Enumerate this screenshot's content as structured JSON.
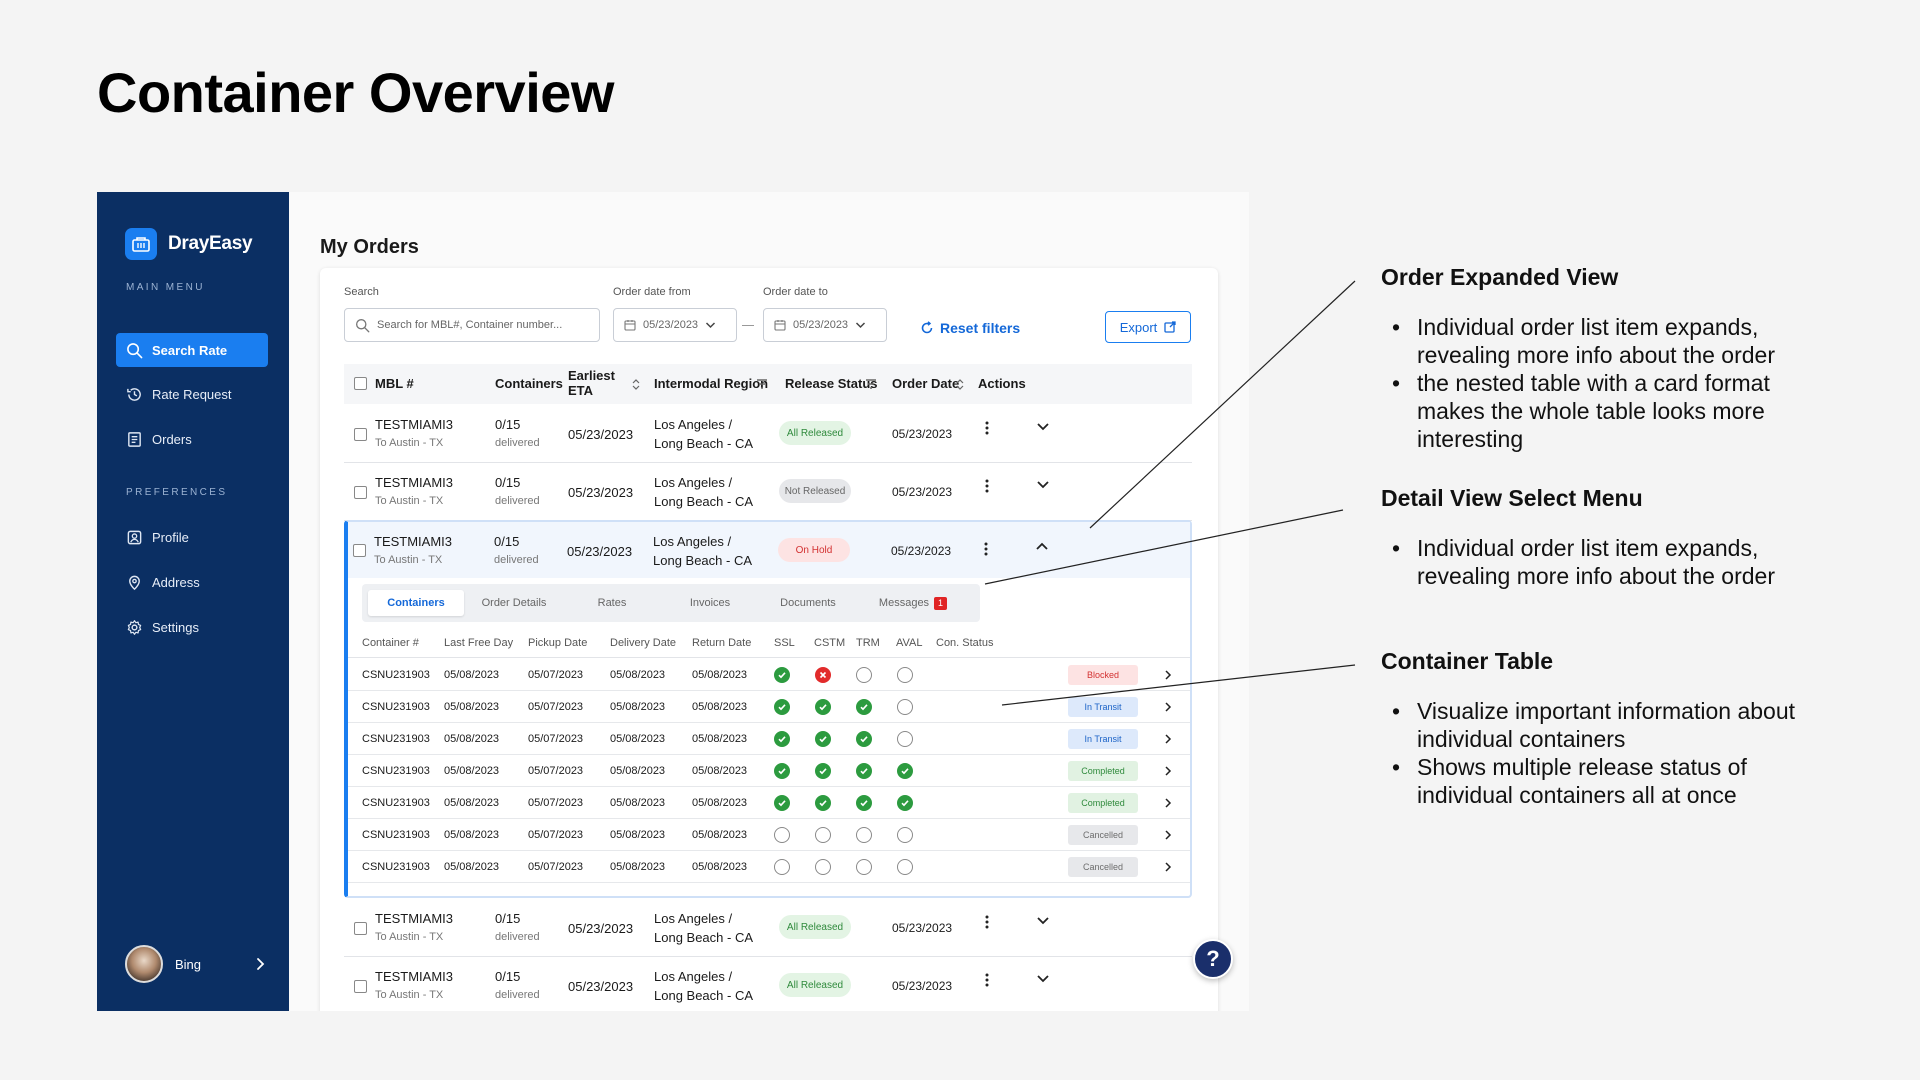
{
  "slide": {
    "title": "Container Overview"
  },
  "sidebar": {
    "brand": "DrayEasy",
    "main_menu_label": "MAIN MENU",
    "preferences_label": "PREFERENCES",
    "items": [
      {
        "label": "Search Rate",
        "icon": "search-icon",
        "active": true
      },
      {
        "label": "Rate Request",
        "icon": "history-icon",
        "active": false
      },
      {
        "label": "Orders",
        "icon": "list-icon",
        "active": false
      },
      {
        "label": "Profile",
        "icon": "profile-icon",
        "active": false
      },
      {
        "label": "Address",
        "icon": "location-icon",
        "active": false
      },
      {
        "label": "Settings",
        "icon": "gear-icon",
        "active": false
      }
    ],
    "user": {
      "name": "Bing"
    }
  },
  "main": {
    "title": "My Orders",
    "filters": {
      "search_label": "Search",
      "search_placeholder": "Search for MBL#, Container number...",
      "date_from_label": "Order date from",
      "date_from_value": "05/23/2023",
      "date_to_label": "Order date to",
      "date_to_value": "05/23/2023",
      "reset_label": "Reset filters",
      "export_label": "Export"
    },
    "columns": [
      "MBL #",
      "Containers",
      "Earliest ETA",
      "Intermodal Region",
      "Release Status",
      "Order Date",
      "Actions"
    ],
    "orders": [
      {
        "mbl": "TESTMIAMI3",
        "dest": "To Austin - TX",
        "containers": "0/15",
        "delivered": "delivered",
        "eta": "05/23/2023",
        "region1": "Los Angeles /",
        "region2": "Long Beach - CA",
        "status": "All Released",
        "order_date": "05/23/2023"
      },
      {
        "mbl": "TESTMIAMI3",
        "dest": "To Austin - TX",
        "containers": "0/15",
        "delivered": "delivered",
        "eta": "05/23/2023",
        "region1": "Los Angeles /",
        "region2": "Long Beach - CA",
        "status": "Not Released",
        "order_date": "05/23/2023"
      },
      {
        "mbl": "TESTMIAMI3",
        "dest": "To Austin - TX",
        "containers": "0/15",
        "delivered": "delivered",
        "eta": "05/23/2023",
        "region1": "Los Angeles /",
        "region2": "Long Beach - CA",
        "status": "On Hold",
        "order_date": "05/23/2023"
      },
      {
        "mbl": "TESTMIAMI3",
        "dest": "To Austin - TX",
        "containers": "0/15",
        "delivered": "delivered",
        "eta": "05/23/2023",
        "region1": "Los Angeles /",
        "region2": "Long Beach - CA",
        "status": "All Released",
        "order_date": "05/23/2023"
      },
      {
        "mbl": "TESTMIAMI3",
        "dest": "To Austin - TX",
        "containers": "0/15",
        "delivered": "delivered",
        "eta": "05/23/2023",
        "region1": "Los Angeles /",
        "region2": "Long Beach - CA",
        "status": "All Released",
        "order_date": "05/23/2023"
      }
    ],
    "detail_tabs": [
      {
        "label": "Containers",
        "active": true
      },
      {
        "label": "Order Details",
        "active": false
      },
      {
        "label": "Rates",
        "active": false
      },
      {
        "label": "Invoices",
        "active": false
      },
      {
        "label": "Documents",
        "active": false
      },
      {
        "label": "Messages",
        "active": false,
        "badge": "1"
      }
    ],
    "container_columns": [
      "Container #",
      "Last Free Day",
      "Pickup Date",
      "Delivery Date",
      "Return Date",
      "SSL",
      "CSTM",
      "TRM",
      "AVAL",
      "Con. Status"
    ],
    "containers": [
      {
        "id": "CSNU231903",
        "lfd": "05/08/2023",
        "pickup": "05/07/2023",
        "delivery": "05/08/2023",
        "return": "05/08/2023",
        "ssl": "ok",
        "cstm": "x",
        "trm": "none",
        "aval": "none",
        "status": "Blocked"
      },
      {
        "id": "CSNU231903",
        "lfd": "05/08/2023",
        "pickup": "05/07/2023",
        "delivery": "05/08/2023",
        "return": "05/08/2023",
        "ssl": "ok",
        "cstm": "ok",
        "trm": "ok",
        "aval": "none",
        "status": "In Transit"
      },
      {
        "id": "CSNU231903",
        "lfd": "05/08/2023",
        "pickup": "05/07/2023",
        "delivery": "05/08/2023",
        "return": "05/08/2023",
        "ssl": "ok",
        "cstm": "ok",
        "trm": "ok",
        "aval": "none",
        "status": "In Transit"
      },
      {
        "id": "CSNU231903",
        "lfd": "05/08/2023",
        "pickup": "05/07/2023",
        "delivery": "05/08/2023",
        "return": "05/08/2023",
        "ssl": "ok",
        "cstm": "ok",
        "trm": "ok",
        "aval": "ok",
        "status": "Completed"
      },
      {
        "id": "CSNU231903",
        "lfd": "05/08/2023",
        "pickup": "05/07/2023",
        "delivery": "05/08/2023",
        "return": "05/08/2023",
        "ssl": "ok",
        "cstm": "ok",
        "trm": "ok",
        "aval": "ok",
        "status": "Completed"
      },
      {
        "id": "CSNU231903",
        "lfd": "05/08/2023",
        "pickup": "05/07/2023",
        "delivery": "05/08/2023",
        "return": "05/08/2023",
        "ssl": "none",
        "cstm": "none",
        "trm": "none",
        "aval": "none",
        "status": "Cancelled"
      },
      {
        "id": "CSNU231903",
        "lfd": "05/08/2023",
        "pickup": "05/07/2023",
        "delivery": "05/08/2023",
        "return": "05/08/2023",
        "ssl": "none",
        "cstm": "none",
        "trm": "none",
        "aval": "none",
        "status": "Cancelled"
      }
    ],
    "help_label": "?"
  },
  "annotations": [
    {
      "title": "Order Expanded View",
      "bullets": [
        "Individual order list item expands, revealing more info about the order",
        "the nested table with a card format makes the whole table looks more interesting"
      ]
    },
    {
      "title": "Detail View Select Menu",
      "bullets": [
        "Individual order list item expands, revealing more info about the order"
      ]
    },
    {
      "title": "Container Table",
      "bullets": [
        "Visualize important information about individual containers",
        "Shows multiple release status of individual containers all at once"
      ]
    }
  ],
  "colors": {
    "sidebar": "#0b2f63",
    "accent": "#1a7ef0",
    "ok": "#2c9b3f",
    "error": "#e22b2b"
  }
}
